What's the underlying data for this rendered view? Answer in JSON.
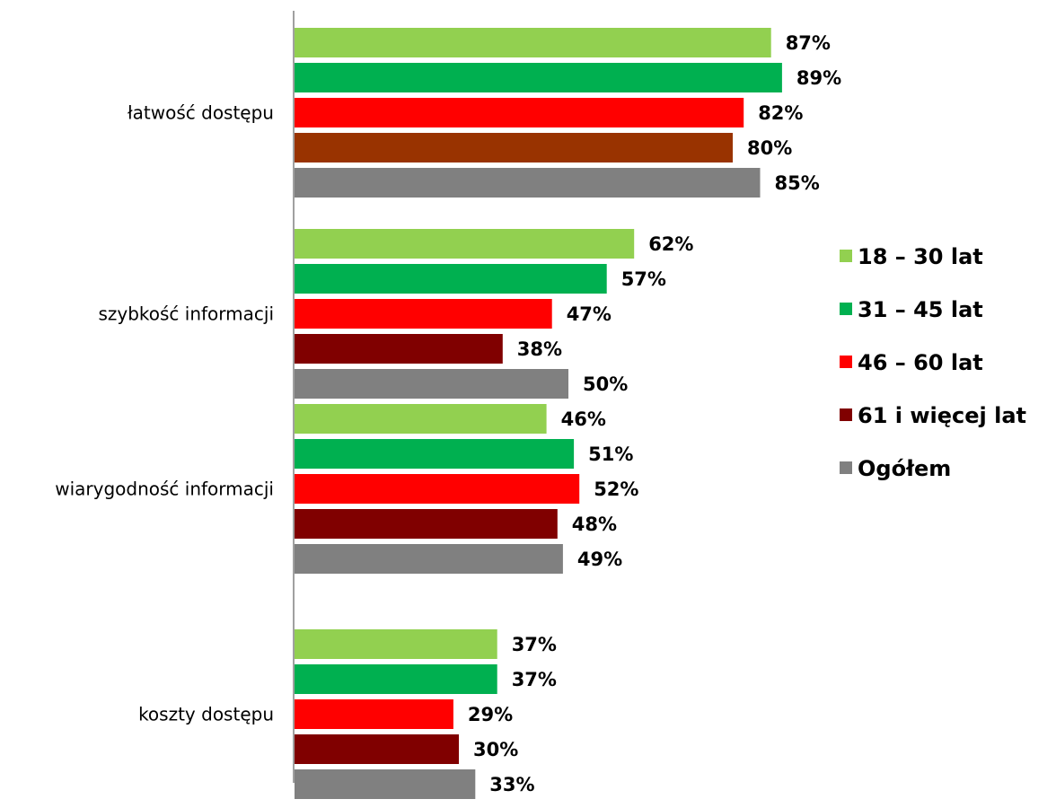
{
  "chart_data": {
    "type": "bar",
    "orientation": "horizontal",
    "categories": [
      "łatwość dostępu",
      "szybkość informacji",
      "wiarygodność informacji",
      "koszty dostępu"
    ],
    "series": [
      {
        "name": "18 – 30 lat",
        "color": "#92d050",
        "values": [
          87,
          62,
          46,
          37
        ]
      },
      {
        "name": "31 – 45 lat",
        "color": "#00b050",
        "values": [
          89,
          57,
          51,
          37
        ]
      },
      {
        "name": "46 – 60 lat",
        "color": "#ff0000",
        "values": [
          82,
          47,
          52,
          29
        ]
      },
      {
        "name": "61 i więcej lat",
        "color": "#800000",
        "values": [
          80,
          38,
          48,
          30
        ]
      },
      {
        "name": "Ogółem",
        "color": "#808080",
        "values": [
          85,
          50,
          49,
          33
        ]
      }
    ],
    "series_color_overrides": [
      {
        "series": 3,
        "category": 0,
        "color": "#993300"
      }
    ],
    "value_suffix": "%",
    "xlim": [
      0,
      100
    ],
    "grid": false,
    "legend_position": "right"
  }
}
